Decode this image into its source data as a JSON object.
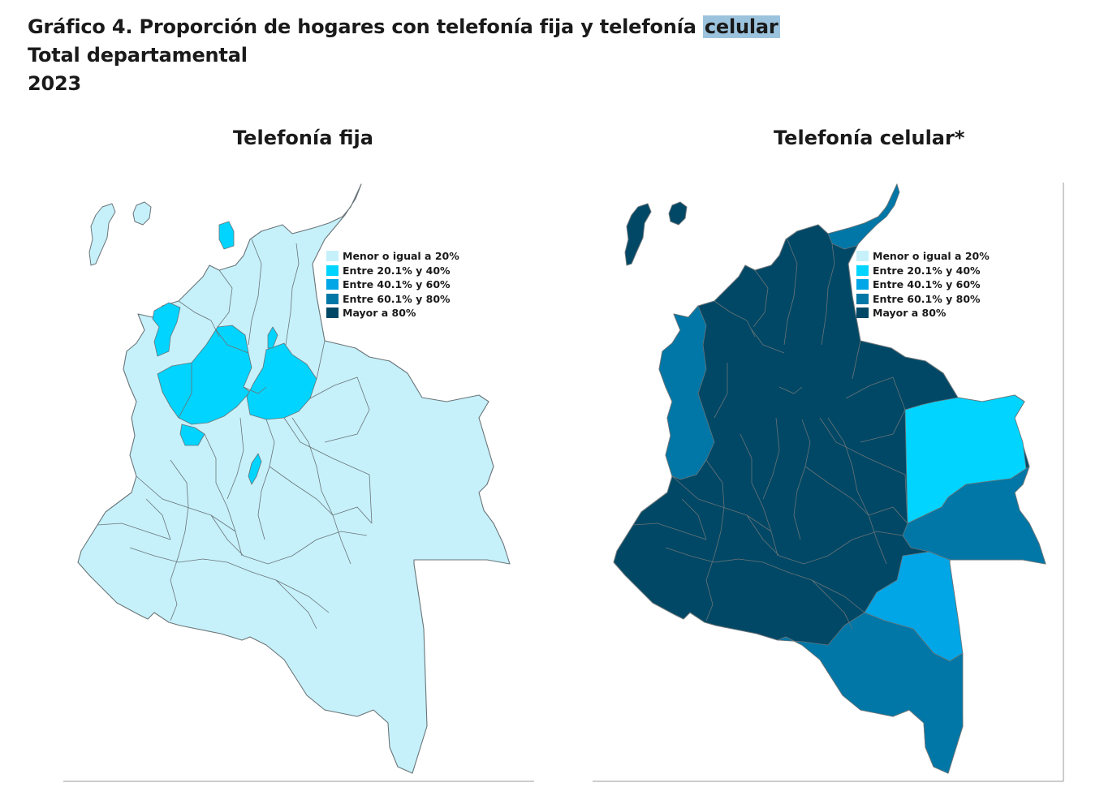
{
  "heading": {
    "line1_prefix": "Gráfico 4. Proporción de hogares con telefonía fija y telefonía",
    "line1_highlight": "celular",
    "line2": "Total departamental",
    "line3": "2023"
  },
  "legend": {
    "items": [
      {
        "label": "Menor o igual a 20%",
        "color": "#c6f1fb"
      },
      {
        "label": "Entre 20.1% y 40%",
        "color": "#00d4ff"
      },
      {
        "label": "Entre 40.1% y 60%",
        "color": "#00a6e6"
      },
      {
        "label": "Entre 60.1% y 80%",
        "color": "#0077a6"
      },
      {
        "label": "Mayor a 80%",
        "color": "#004866"
      }
    ]
  },
  "maps": [
    {
      "title": "Telefonía fija",
      "base_class": 0,
      "highlights": [
        {
          "region": "atlantico",
          "class": 1
        },
        {
          "region": "cordoba",
          "class": 1
        },
        {
          "region": "antioquia",
          "class": 1
        },
        {
          "region": "santander",
          "class": 1
        },
        {
          "region": "caldas",
          "class": 1
        },
        {
          "region": "bogota",
          "class": 1
        },
        {
          "region": "risaralda",
          "class": 1
        }
      ]
    },
    {
      "title": "Telefonía celular*",
      "base_class": 4,
      "highlights": [
        {
          "region": "guajira",
          "class": 3
        },
        {
          "region": "choco",
          "class": 3
        },
        {
          "region": "vichada",
          "class": 1
        },
        {
          "region": "guainia",
          "class": 3
        },
        {
          "region": "vaupes",
          "class": 2
        },
        {
          "region": "amazonas",
          "class": 3
        }
      ]
    }
  ]
}
